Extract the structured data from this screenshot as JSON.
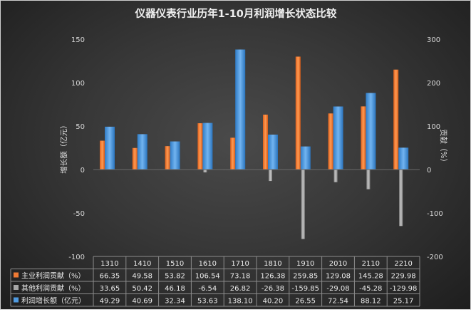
{
  "chart_data": {
    "type": "bar",
    "title": "仪器仪表行业历年1-10月利润增长状态比较",
    "categories": [
      "1310",
      "1410",
      "1510",
      "1610",
      "1710",
      "1810",
      "1910",
      "2010",
      "2110",
      "2210"
    ],
    "series": [
      {
        "name": "主业利润贡献（%）",
        "axis": "right",
        "color": "#f07a34",
        "values": [
          66.35,
          49.58,
          53.82,
          106.54,
          73.18,
          126.38,
          259.85,
          129.08,
          145.28,
          229.98
        ]
      },
      {
        "name": "其他利润贡献（%）",
        "axis": "right",
        "color": "#a6a6a6",
        "values": [
          33.65,
          50.42,
          46.18,
          -6.54,
          26.82,
          -26.38,
          -159.85,
          -29.08,
          -45.28,
          -129.98
        ]
      },
      {
        "name": "利润增长额（亿元）",
        "axis": "left",
        "color": "#4f9ae0",
        "values": [
          49.29,
          40.69,
          32.34,
          53.63,
          138.1,
          40.2,
          26.55,
          72.54,
          88.12,
          25.17
        ]
      }
    ],
    "ylabel": "增长额（亿元）",
    "y2label": "贡献（%）",
    "ylim": [
      -100,
      150
    ],
    "y2lim": [
      -200,
      300
    ],
    "yticks": [
      -100,
      -50,
      0,
      50,
      100,
      150
    ],
    "y2ticks": [
      -200,
      -100,
      0,
      100,
      200,
      300
    ],
    "table_values": [
      [
        "66.35",
        "49.58",
        "53.82",
        "106.54",
        "73.18",
        "126.38",
        "259.85",
        "129.08",
        "145.28",
        "229.98"
      ],
      [
        "33.65",
        "50.42",
        "46.18",
        "-6.54",
        "26.82",
        "-26.38",
        "-159.85",
        "-29.08",
        "-45.28",
        "-129.98"
      ],
      [
        "49.29",
        "40.69",
        "32.34",
        "53.63",
        "138.10",
        "40.20",
        "26.55",
        "72.54",
        "88.12",
        "25.17"
      ]
    ],
    "grid": false,
    "legend": "data-table"
  }
}
